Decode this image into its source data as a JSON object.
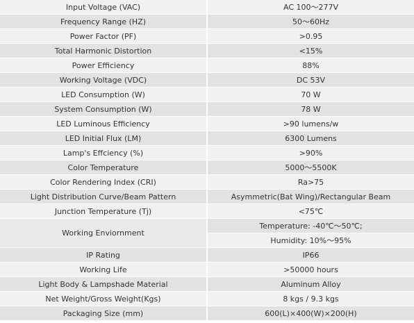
{
  "rows": [
    {
      "label": "Input Voltage (VAC)",
      "value": "AC 100～277V"
    },
    {
      "label": "Frequency Range (HZ)",
      "value": "50～60Hz"
    },
    {
      "label": "Power Factor (PF)",
      "value": ">0.95"
    },
    {
      "label": "Total Harmonic Distortion",
      "value": "<15%"
    },
    {
      "label": "Power Efficiency",
      "value": "88%"
    },
    {
      "label": "Working Voltage (VDC)",
      "value": "DC 53V"
    },
    {
      "label": "LED Consumption (W)",
      "value": "70 W"
    },
    {
      "label": "System Consumption (W)",
      "value": "78 W"
    },
    {
      "label": "LED Luminous Efficiency",
      "value": ">90 lumens/w"
    },
    {
      "label": "LED Initial Flux (LM)",
      "value": "6300 Lumens"
    },
    {
      "label": "Lamp's Effciency (%)",
      "value": ">90%"
    },
    {
      "label": "Color Temperature",
      "value": "5000～5500K"
    },
    {
      "label": "Color Rendering Index (CRI)",
      "value": "Ra>75"
    },
    {
      "label": "Light Distribution Curve/Beam Pattern",
      "value": "Asymmetric(Bat Wing)/Rectangular Beam"
    },
    {
      "label": "Junction Temperature (Tj)",
      "value": "<75℃"
    }
  ],
  "working_environment": {
    "label": "Working Enviornment",
    "temperature": "Temperature: -40℃～50℃;",
    "humidity": "Humidity: 10%～95%"
  },
  "rows_after": [
    {
      "label": "IP Rating",
      "value": "IP66"
    },
    {
      "label": "Working Life",
      "value": ">50000 hours"
    },
    {
      "label": "Light Body & Lampshade Material",
      "value": "Aluminum Alloy"
    },
    {
      "label": "Net Weight/Gross Weight(Kgs)",
      "value": "8 kgs / 9.3 kgs"
    },
    {
      "label": "Packaging Size (mm)",
      "value": "600(L)×400(W)×200(H)"
    }
  ],
  "colors": {
    "row_light": "#f1f1f1",
    "row_dark": "#e2e2e2",
    "text": "#333333"
  }
}
